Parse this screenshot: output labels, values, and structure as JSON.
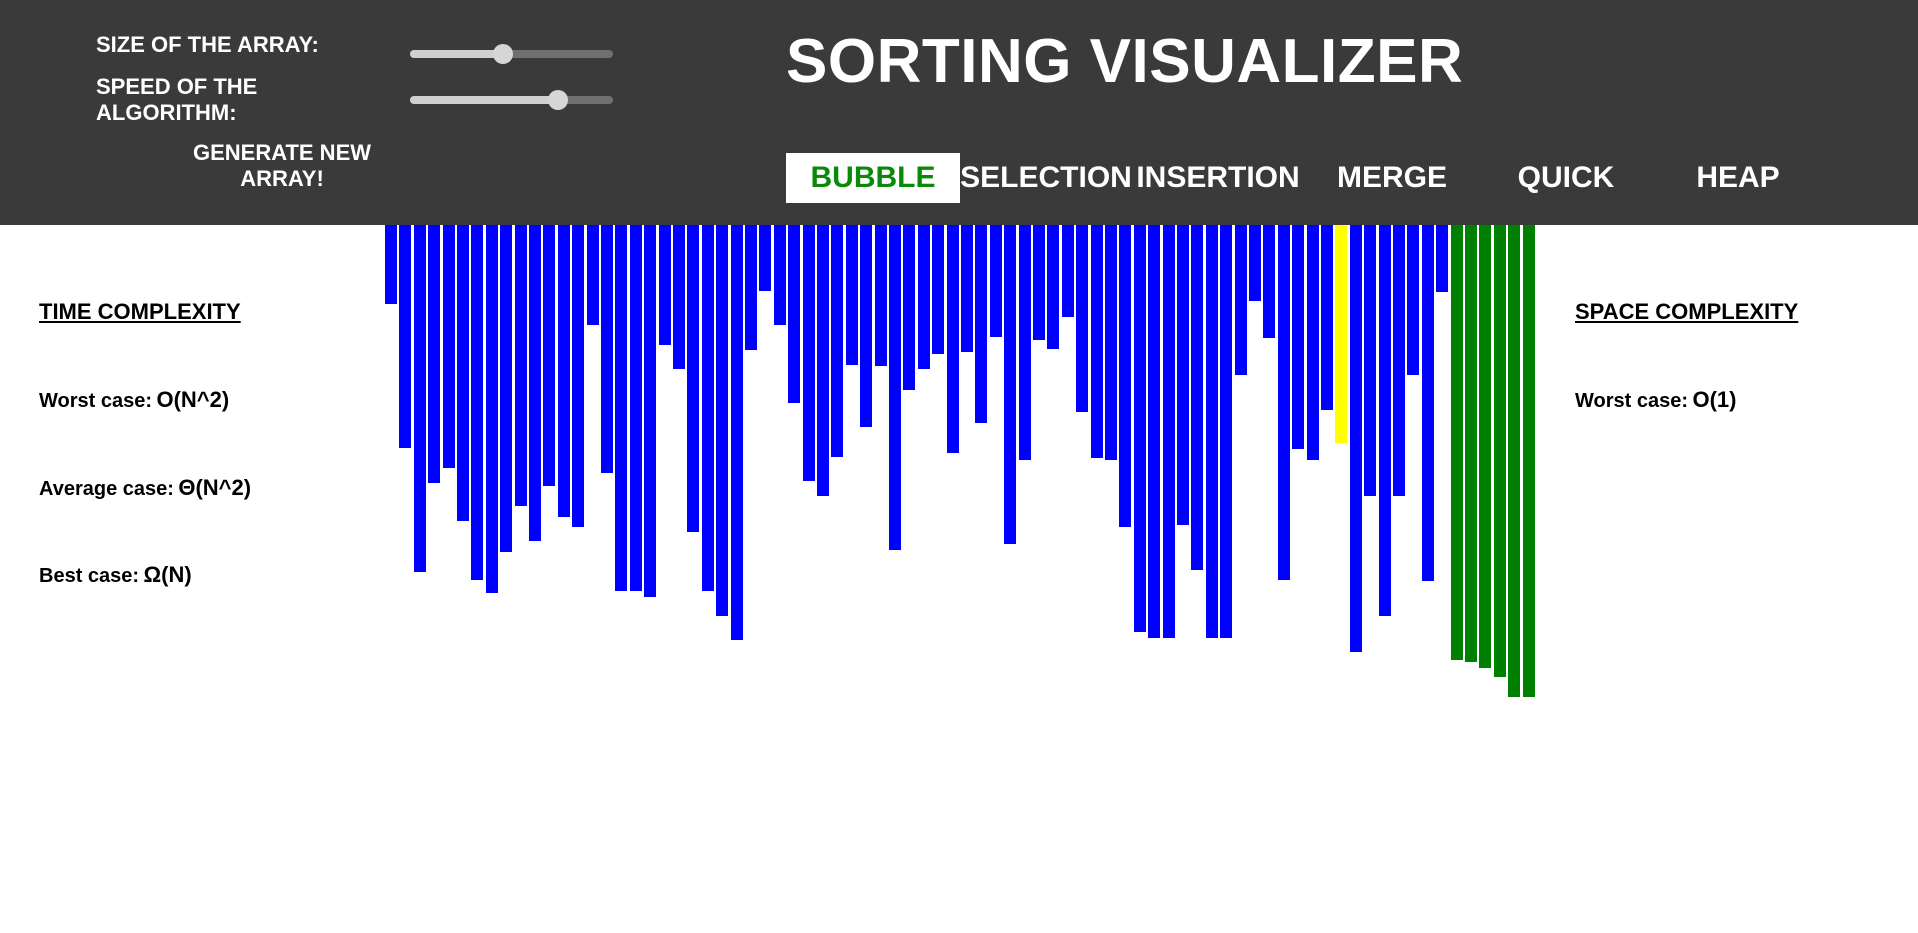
{
  "controls": {
    "size_label": "SIZE OF THE ARRAY:",
    "size_level": 0.46,
    "speed_label": "SPEED OF THE ALGORITHM:",
    "speed_level": 0.73,
    "generate_label": "GENERATE NEW ARRAY!"
  },
  "title": "SORTING VISUALIZER",
  "algorithms": [
    {
      "label": "BUBBLE",
      "active": true
    },
    {
      "label": "SELECTION",
      "active": false
    },
    {
      "label": "INSERTION",
      "active": false
    },
    {
      "label": "MERGE",
      "active": false
    },
    {
      "label": "QUICK",
      "active": false
    },
    {
      "label": "HEAP",
      "active": false
    }
  ],
  "time_complexity": {
    "heading": "TIME COMPLEXITY",
    "worst_label": "Worst case:",
    "worst_value": "O(N^2)",
    "average_label": "Average case:",
    "average_value": "Θ(N^2)",
    "best_label": "Best case:",
    "best_value": "Ω(N)"
  },
  "space_complexity": {
    "heading": "SPACE COMPLEXITY",
    "worst_label": "Worst case:",
    "worst_value": "O(1)"
  },
  "colors": {
    "header": "#3a3a3a",
    "bar_default": "#0000ff",
    "bar_compare": "#ffff00",
    "bar_sorted": "#008000",
    "active_tab_text": "#098a09"
  },
  "array": {
    "values": [
      79,
      223,
      347,
      258,
      243,
      296,
      355,
      368,
      327,
      281,
      316,
      261,
      292,
      302,
      100,
      248,
      366,
      366,
      372,
      120,
      144,
      307,
      366,
      391,
      415,
      125,
      66,
      100,
      178,
      256,
      271,
      232,
      140,
      202,
      141,
      325,
      165,
      144,
      129,
      228,
      127,
      198,
      112,
      319,
      235,
      115,
      124,
      92,
      187,
      233,
      235,
      302,
      407,
      413,
      413,
      300,
      345,
      413,
      413,
      150,
      76,
      113,
      355,
      224,
      235,
      185,
      218,
      427,
      271,
      391,
      271,
      150,
      356,
      67
    ],
    "states": [
      "d",
      "d",
      "d",
      "d",
      "d",
      "d",
      "d",
      "d",
      "d",
      "d",
      "d",
      "d",
      "d",
      "d",
      "d",
      "d",
      "d",
      "d",
      "d",
      "d",
      "d",
      "d",
      "d",
      "d",
      "d",
      "d",
      "d",
      "d",
      "d",
      "d",
      "d",
      "d",
      "d",
      "d",
      "d",
      "d",
      "d",
      "d",
      "d",
      "d",
      "d",
      "d",
      "d",
      "d",
      "d",
      "d",
      "d",
      "d",
      "d",
      "d",
      "d",
      "d",
      "d",
      "d",
      "d",
      "d",
      "d",
      "d",
      "d",
      "d",
      "d",
      "d",
      "d",
      "d",
      "d",
      "d",
      "c",
      "d",
      "d",
      "d",
      "d",
      "d",
      "d",
      "d"
    ],
    "sorted_values": [
      435,
      437,
      443,
      452,
      472,
      472
    ]
  }
}
